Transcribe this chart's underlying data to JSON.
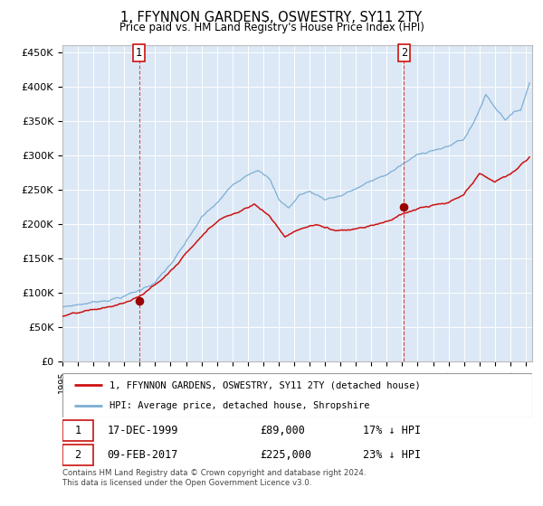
{
  "title": "1, FFYNNON GARDENS, OSWESTRY, SY11 2TY",
  "subtitle": "Price paid vs. HM Land Registry's House Price Index (HPI)",
  "ylabel_ticks": [
    "£0",
    "£50K",
    "£100K",
    "£150K",
    "£200K",
    "£250K",
    "£300K",
    "£350K",
    "£400K",
    "£450K"
  ],
  "ytick_values": [
    0,
    50000,
    100000,
    150000,
    200000,
    250000,
    300000,
    350000,
    400000,
    450000
  ],
  "ylim": [
    0,
    460000
  ],
  "hpi_color": "#7bafd4",
  "price_color": "#cc1111",
  "bg_color": "#dce8f5",
  "annotation1_date": "17-DEC-1999",
  "annotation1_price": "£89,000",
  "annotation1_hpi": "17% ↓ HPI",
  "annotation2_date": "09-FEB-2017",
  "annotation2_price": "£225,000",
  "annotation2_hpi": "23% ↓ HPI",
  "legend_line1": "1, FFYNNON GARDENS, OSWESTRY, SY11 2TY (detached house)",
  "legend_line2": "HPI: Average price, detached house, Shropshire",
  "footnote": "Contains HM Land Registry data © Crown copyright and database right 2024.\nThis data is licensed under the Open Government Licence v3.0."
}
